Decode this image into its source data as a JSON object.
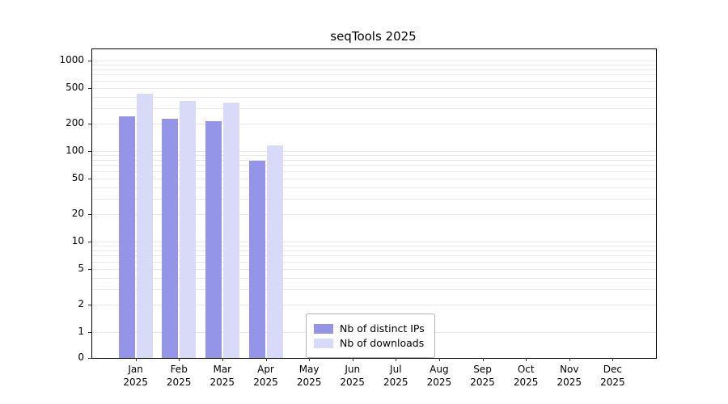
{
  "chart_data": {
    "type": "bar",
    "title": "seqTools 2025",
    "categories": [
      "Jan 2025",
      "Feb 2025",
      "Mar 2025",
      "Apr 2025",
      "May 2025",
      "Jun 2025",
      "Jul 2025",
      "Aug 2025",
      "Sep 2025",
      "Oct 2025",
      "Nov 2025",
      "Dec 2025"
    ],
    "series": [
      {
        "name": "Nb of distinct IPs",
        "color": "#9494e8",
        "values": [
          240,
          230,
          215,
          78,
          null,
          null,
          null,
          null,
          null,
          null,
          null,
          null
        ]
      },
      {
        "name": "Nb of downloads",
        "color": "#d9d9f8",
        "values": [
          430,
          355,
          345,
          115,
          null,
          null,
          null,
          null,
          null,
          null,
          null,
          null
        ]
      }
    ],
    "xlabel": "",
    "ylabel": "",
    "yscale": "symlog",
    "yticks": [
      0,
      1,
      2,
      5,
      10,
      20,
      50,
      100,
      200,
      500,
      1000
    ],
    "ylim": [
      0,
      1300
    ],
    "grid": "horizontal-minor-log",
    "grid_color": "#e8e8e8",
    "legend_position": "lower-center"
  }
}
